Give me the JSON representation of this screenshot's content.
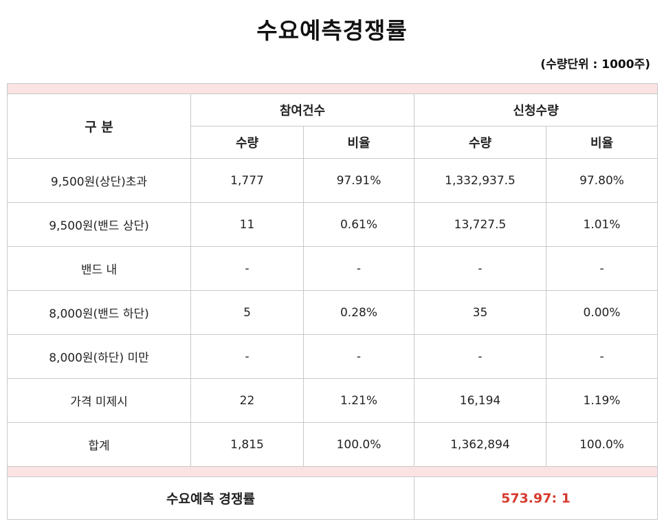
{
  "title": "수요예측경쟁률",
  "unit_note": "(수량단위 : 1000주)",
  "header": {
    "category": "구 분",
    "participants": "참여건수",
    "application": "신청수량",
    "quantity": "수량",
    "ratio": "비율"
  },
  "rows": [
    {
      "label": "9,500원(상단)초과",
      "p_qty": "1,777",
      "p_ratio": "97.91%",
      "a_qty": "1,332,937.5",
      "a_ratio": "97.80%"
    },
    {
      "label": "9,500원(밴드 상단)",
      "p_qty": "11",
      "p_ratio": "0.61%",
      "a_qty": "13,727.5",
      "a_ratio": "1.01%"
    },
    {
      "label": "밴드 내",
      "p_qty": "-",
      "p_ratio": "-",
      "a_qty": "-",
      "a_ratio": "-"
    },
    {
      "label": "8,000원(밴드 하단)",
      "p_qty": "5",
      "p_ratio": "0.28%",
      "a_qty": "35",
      "a_ratio": "0.00%"
    },
    {
      "label": "8,000원(하단) 미만",
      "p_qty": "-",
      "p_ratio": "-",
      "a_qty": "-",
      "a_ratio": "-"
    },
    {
      "label": "가격 미제시",
      "p_qty": "22",
      "p_ratio": "1.21%",
      "a_qty": "16,194",
      "a_ratio": "1.19%"
    },
    {
      "label": "합계",
      "p_qty": "1,815",
      "p_ratio": "100.0%",
      "a_qty": "1,362,894",
      "a_ratio": "100.0%"
    }
  ],
  "footer": {
    "label": "수요예측 경쟁률",
    "value": "573.97: 1"
  },
  "colors": {
    "band": "#fbe3e3",
    "ratio_value": "#d63a2e"
  }
}
